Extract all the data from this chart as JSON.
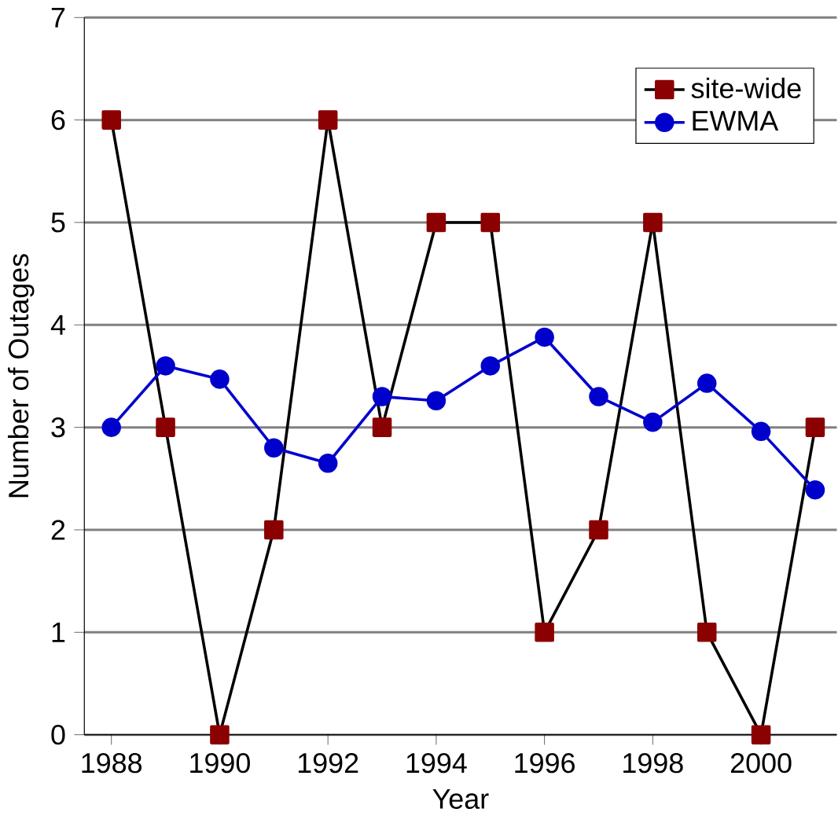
{
  "chart_data": {
    "type": "line",
    "xlabel": "Year",
    "ylabel": "Number of Outages",
    "x": [
      1988,
      1989,
      1990,
      1991,
      1992,
      1993,
      1994,
      1995,
      1996,
      1997,
      1998,
      1999,
      2000,
      2001
    ],
    "series": [
      {
        "name": "site-wide",
        "color": "#8b0000",
        "marker": "square",
        "values": [
          6,
          3,
          0,
          2,
          6,
          3,
          5,
          5,
          1,
          2,
          5,
          1,
          0,
          3
        ]
      },
      {
        "name": "EWMA",
        "color": "#0000cc",
        "marker": "circle",
        "values": [
          3.0,
          3.6,
          3.47,
          2.8,
          2.65,
          3.3,
          3.26,
          3.6,
          3.88,
          3.3,
          3.05,
          3.43,
          2.96,
          2.39
        ]
      }
    ],
    "xlim": [
      1987.5,
      2001.4
    ],
    "xticks": [
      1988,
      1990,
      1992,
      1994,
      1996,
      1998,
      2000
    ],
    "ylim": [
      0,
      7
    ],
    "yticks": [
      0,
      1,
      2,
      3,
      4,
      5,
      6,
      7
    ],
    "grid": "y",
    "legend": "top right"
  }
}
